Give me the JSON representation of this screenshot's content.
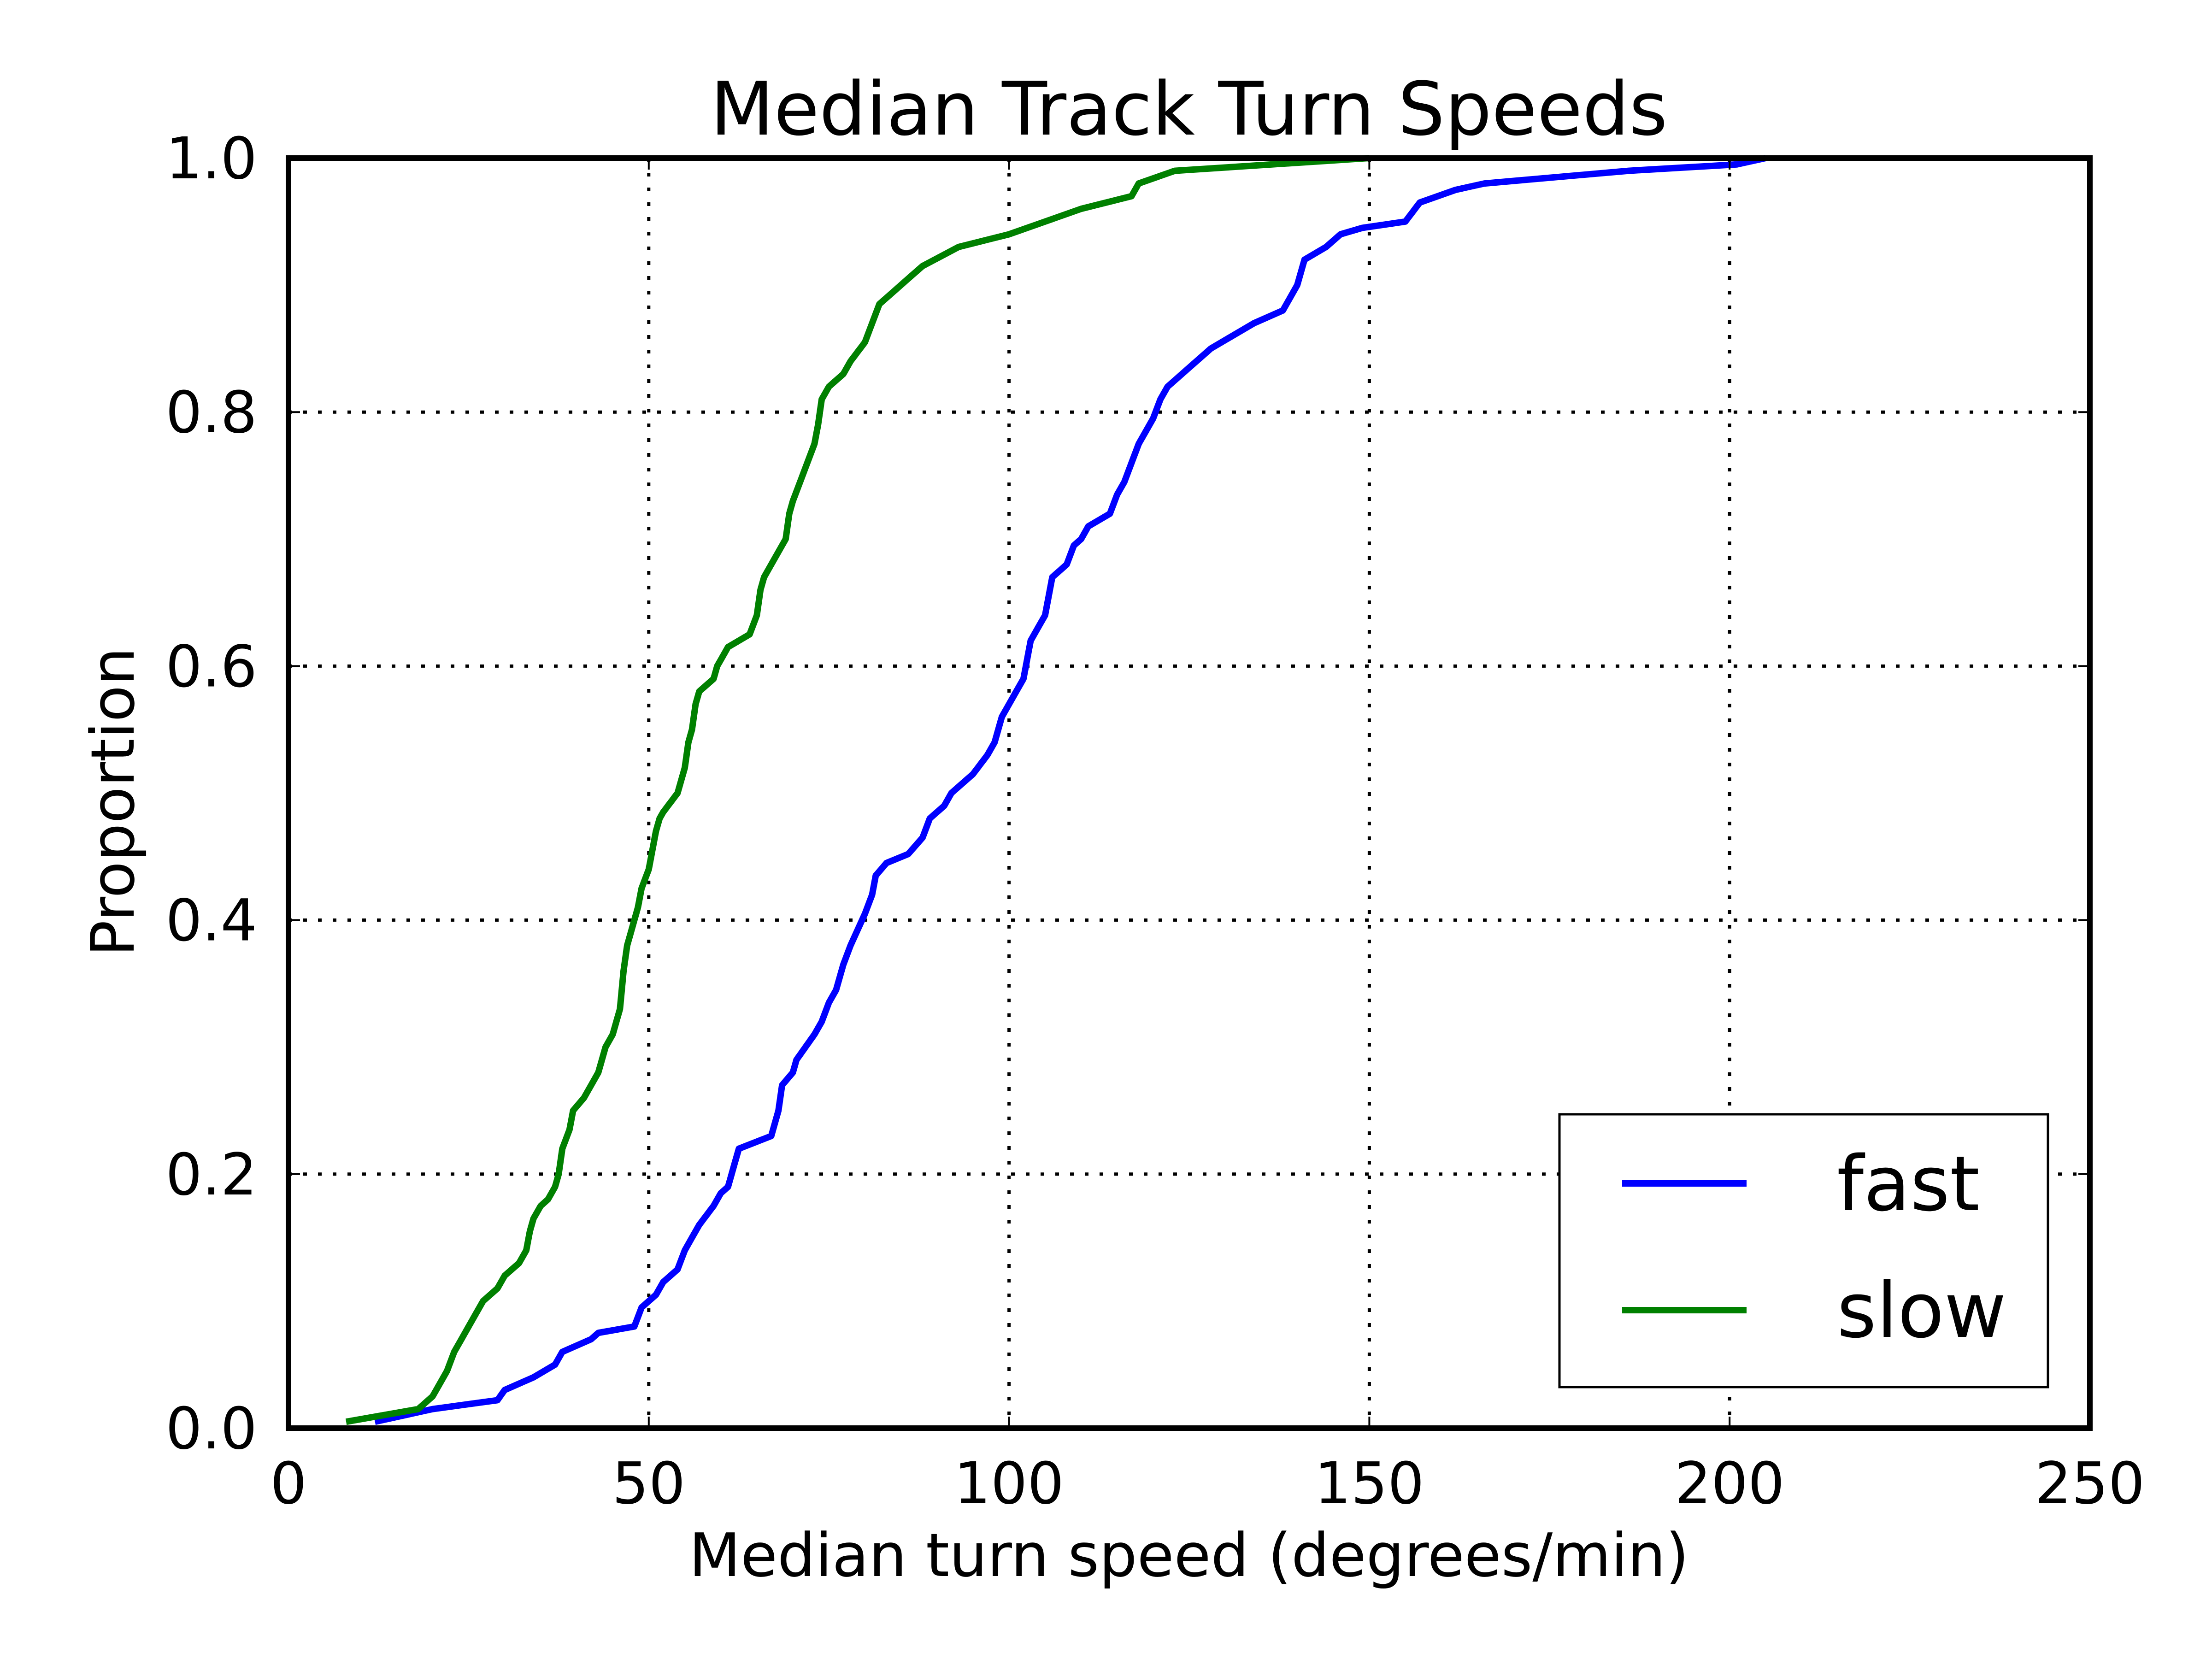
{
  "chart_data": {
    "type": "line",
    "title": "Median Track Turn Speeds",
    "xlabel": "Median turn speed (degrees/min)",
    "ylabel": "Proportion",
    "xlim": [
      0,
      250
    ],
    "ylim": [
      0,
      1.0
    ],
    "x_ticks": [
      0,
      50,
      100,
      150,
      200,
      250
    ],
    "y_ticks": [
      0.0,
      0.2,
      0.4,
      0.6,
      0.8,
      1.0
    ],
    "x_tick_labels": [
      "0",
      "50",
      "100",
      "150",
      "200",
      "250"
    ],
    "y_tick_labels": [
      "0.0",
      "0.2",
      "0.4",
      "0.6",
      "0.8",
      "1.0"
    ],
    "grid": true,
    "legend_position": "bottom-right",
    "series": [
      {
        "name": "fast",
        "color": "#0000ff",
        "points": [
          [
            12,
            0.005
          ],
          [
            20,
            0.015
          ],
          [
            29,
            0.022
          ],
          [
            30,
            0.03
          ],
          [
            34,
            0.04
          ],
          [
            37,
            0.05
          ],
          [
            38,
            0.06
          ],
          [
            42,
            0.07
          ],
          [
            43,
            0.075
          ],
          [
            48,
            0.08
          ],
          [
            49,
            0.095
          ],
          [
            51,
            0.105
          ],
          [
            52,
            0.115
          ],
          [
            54,
            0.125
          ],
          [
            55,
            0.14
          ],
          [
            56,
            0.15
          ],
          [
            57,
            0.16
          ],
          [
            59,
            0.175
          ],
          [
            60,
            0.185
          ],
          [
            61,
            0.19
          ],
          [
            62,
            0.21
          ],
          [
            62.5,
            0.22
          ],
          [
            67,
            0.23
          ],
          [
            68,
            0.25
          ],
          [
            68.5,
            0.27
          ],
          [
            70,
            0.28
          ],
          [
            70.5,
            0.29
          ],
          [
            73,
            0.31
          ],
          [
            74,
            0.32
          ],
          [
            75,
            0.335
          ],
          [
            76,
            0.345
          ],
          [
            77,
            0.365
          ],
          [
            78,
            0.38
          ],
          [
            80,
            0.405
          ],
          [
            81,
            0.42
          ],
          [
            81.5,
            0.435
          ],
          [
            83,
            0.445
          ],
          [
            86,
            0.452
          ],
          [
            88,
            0.465
          ],
          [
            89,
            0.48
          ],
          [
            91,
            0.49
          ],
          [
            92,
            0.5
          ],
          [
            94,
            0.51
          ],
          [
            95,
            0.515
          ],
          [
            97,
            0.53
          ],
          [
            98,
            0.54
          ],
          [
            99,
            0.56
          ],
          [
            100,
            0.57
          ],
          [
            101,
            0.58
          ],
          [
            102,
            0.59
          ],
          [
            103,
            0.62
          ],
          [
            104,
            0.63
          ],
          [
            105,
            0.64
          ],
          [
            106,
            0.67
          ],
          [
            107,
            0.675
          ],
          [
            108,
            0.68
          ],
          [
            109,
            0.695
          ],
          [
            110,
            0.7
          ],
          [
            111,
            0.71
          ],
          [
            114,
            0.72
          ],
          [
            115,
            0.735
          ],
          [
            116,
            0.745
          ],
          [
            117,
            0.76
          ],
          [
            118,
            0.775
          ],
          [
            119,
            0.785
          ],
          [
            120,
            0.795
          ],
          [
            121,
            0.81
          ],
          [
            122,
            0.82
          ],
          [
            124,
            0.83
          ],
          [
            126,
            0.84
          ],
          [
            128,
            0.85
          ],
          [
            134,
            0.87
          ],
          [
            138,
            0.88
          ],
          [
            139,
            0.89
          ],
          [
            140,
            0.9
          ],
          [
            141,
            0.92
          ],
          [
            144,
            0.93
          ],
          [
            146,
            0.94
          ],
          [
            149,
            0.945
          ],
          [
            155,
            0.95
          ],
          [
            157,
            0.965
          ],
          [
            162,
            0.975
          ],
          [
            166,
            0.98
          ],
          [
            186,
            0.99
          ],
          [
            201,
            0.995
          ],
          [
            205,
            1.0
          ]
        ]
      },
      {
        "name": "slow",
        "color": "#008000",
        "points": [
          [
            8,
            0.005
          ],
          [
            18,
            0.015
          ],
          [
            20,
            0.025
          ],
          [
            21,
            0.035
          ],
          [
            22,
            0.045
          ],
          [
            23,
            0.06
          ],
          [
            24,
            0.07
          ],
          [
            25,
            0.08
          ],
          [
            26,
            0.09
          ],
          [
            27,
            0.1
          ],
          [
            29,
            0.11
          ],
          [
            30,
            0.12
          ],
          [
            32,
            0.13
          ],
          [
            33,
            0.14
          ],
          [
            33.5,
            0.155
          ],
          [
            34,
            0.165
          ],
          [
            35,
            0.175
          ],
          [
            36,
            0.18
          ],
          [
            37,
            0.19
          ],
          [
            37.5,
            0.2
          ],
          [
            38,
            0.22
          ],
          [
            39,
            0.235
          ],
          [
            39.5,
            0.25
          ],
          [
            41,
            0.26
          ],
          [
            42,
            0.27
          ],
          [
            43,
            0.28
          ],
          [
            44,
            0.3
          ],
          [
            45,
            0.31
          ],
          [
            45.5,
            0.32
          ],
          [
            46,
            0.33
          ],
          [
            46.5,
            0.36
          ],
          [
            47,
            0.38
          ],
          [
            47.5,
            0.39
          ],
          [
            48.5,
            0.41
          ],
          [
            49,
            0.425
          ],
          [
            50,
            0.44
          ],
          [
            50.5,
            0.455
          ],
          [
            51,
            0.47
          ],
          [
            51.5,
            0.48
          ],
          [
            52,
            0.485
          ],
          [
            54,
            0.5
          ],
          [
            55,
            0.52
          ],
          [
            55.5,
            0.54
          ],
          [
            56,
            0.55
          ],
          [
            56.5,
            0.57
          ],
          [
            57,
            0.58
          ],
          [
            59,
            0.59
          ],
          [
            59.5,
            0.6
          ],
          [
            60,
            0.605
          ],
          [
            61,
            0.615
          ],
          [
            64,
            0.625
          ],
          [
            65,
            0.64
          ],
          [
            65.5,
            0.66
          ],
          [
            66,
            0.67
          ],
          [
            67,
            0.68
          ],
          [
            68,
            0.69
          ],
          [
            69,
            0.7
          ],
          [
            69.5,
            0.72
          ],
          [
            70,
            0.73
          ],
          [
            71,
            0.745
          ],
          [
            72,
            0.76
          ],
          [
            73,
            0.775
          ],
          [
            73.5,
            0.79
          ],
          [
            74,
            0.81
          ],
          [
            75,
            0.82
          ],
          [
            77,
            0.83
          ],
          [
            78,
            0.84
          ],
          [
            80,
            0.855
          ],
          [
            81,
            0.87
          ],
          [
            82,
            0.885
          ],
          [
            84,
            0.895
          ],
          [
            86,
            0.905
          ],
          [
            88,
            0.915
          ],
          [
            93,
            0.93
          ],
          [
            100,
            0.94
          ],
          [
            105,
            0.95
          ],
          [
            110,
            0.96
          ],
          [
            117,
            0.97
          ],
          [
            118,
            0.98
          ],
          [
            123,
            0.99
          ],
          [
            150,
            1.0
          ]
        ]
      }
    ]
  }
}
